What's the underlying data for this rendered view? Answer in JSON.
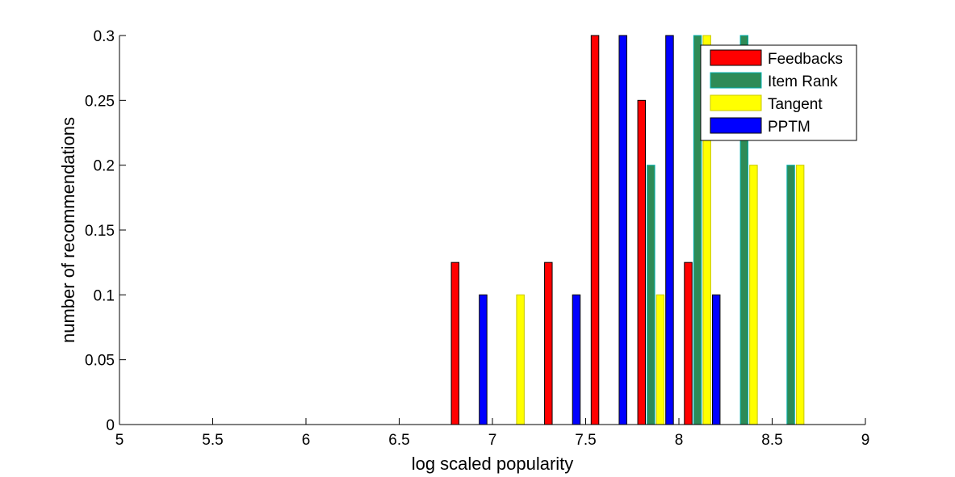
{
  "chart_data": {
    "type": "bar",
    "xlabel": "log scaled popularity",
    "ylabel": "number of recommendations",
    "xlim": [
      5,
      9
    ],
    "ylim": [
      0,
      0.3
    ],
    "xticks": [
      "5",
      "5.5",
      "6",
      "6.5",
      "7",
      "7.5",
      "8",
      "8.5",
      "9"
    ],
    "yticks": [
      "0",
      "0.05",
      "0.1",
      "0.15",
      "0.2",
      "0.25",
      "0.3"
    ],
    "legend_position": "top-right",
    "grid": false,
    "bins": [
      5.125,
      5.375,
      5.625,
      5.875,
      6.125,
      6.375,
      6.625,
      6.875,
      7.125,
      7.375,
      7.625,
      7.875,
      8.125,
      8.375,
      8.625,
      8.875
    ],
    "series": [
      {
        "name": "Feedbacks",
        "color": "#ff0000",
        "edge": "#000000",
        "values": [
          0,
          0,
          0,
          0,
          0,
          0,
          0,
          0.125,
          0,
          0.125,
          0.3,
          0.25,
          0.125,
          0,
          0,
          0
        ]
      },
      {
        "name": "Item Rank",
        "color": "#2e8b57",
        "edge": "#00b0b0",
        "values": [
          0,
          0,
          0,
          0,
          0,
          0,
          0,
          0,
          0,
          0,
          0,
          0.2,
          0.3,
          0.3,
          0.2,
          0
        ]
      },
      {
        "name": "Tangent",
        "color": "#ffff00",
        "edge": "#c8c800",
        "values": [
          0,
          0,
          0,
          0,
          0,
          0,
          0,
          0,
          0.1,
          0,
          0,
          0.1,
          0.3,
          0.2,
          0.2,
          0
        ]
      },
      {
        "name": "PPTM",
        "color": "#0000ff",
        "edge": "#000000",
        "values": [
          0,
          0,
          0,
          0,
          0,
          0,
          0,
          0.1,
          0,
          0.1,
          0.3,
          0.3,
          0.1,
          0,
          0,
          0
        ]
      }
    ]
  }
}
